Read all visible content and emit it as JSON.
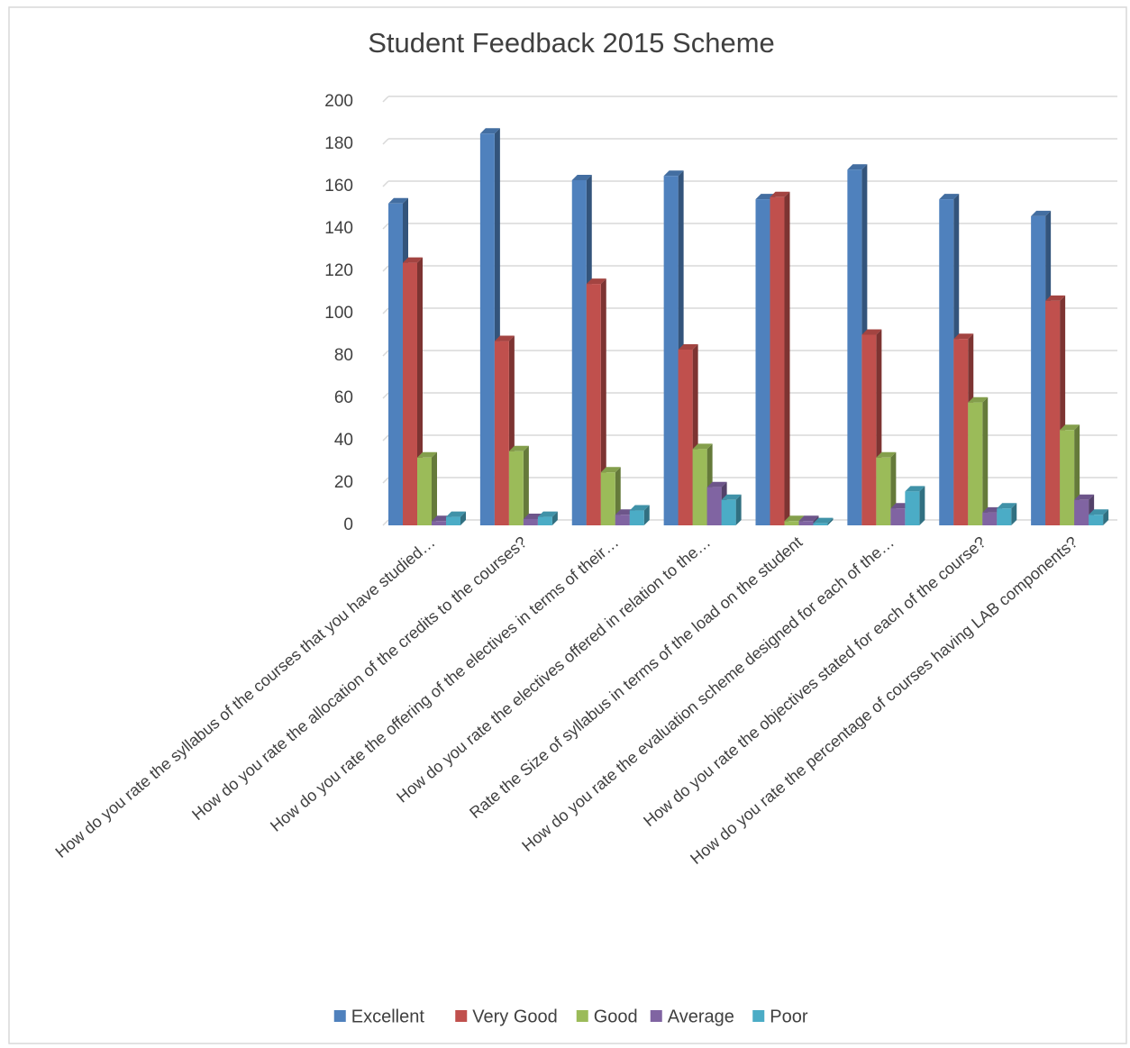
{
  "chart_data": {
    "type": "bar3d",
    "title": "Student Feedback 2015 Scheme",
    "categories": [
      "How do you rate the syllabus of the courses that you have studied…",
      "How do you rate the allocation of the credits to the courses?",
      "How do you rate the offering of the electives in terms of their…",
      "How do you rate the electives offered in relation to the…",
      "Rate the Size of syllabus in terms of the load on the student",
      "How do you rate the evaluation scheme designed for each of the…",
      "How do you rate the objectives stated for each of the course?",
      "How do you rate the percentage of courses having LAB components?"
    ],
    "series": [
      {
        "name": "Excellent",
        "color": "#4f81bd",
        "values": [
          152,
          185,
          163,
          165,
          154,
          168,
          154,
          146
        ]
      },
      {
        "name": "Very Good",
        "color": "#c0504d",
        "values": [
          124,
          87,
          114,
          83,
          155,
          90,
          88,
          106
        ]
      },
      {
        "name": "Good",
        "color": "#9bbb59",
        "values": [
          32,
          35,
          25,
          36,
          2,
          32,
          58,
          45
        ]
      },
      {
        "name": "Average",
        "color": "#8064a2",
        "values": [
          2,
          3,
          5,
          18,
          2,
          8,
          6,
          12
        ]
      },
      {
        "name": "Poor",
        "color": "#4bacc6",
        "values": [
          4,
          4,
          7,
          12,
          1,
          16,
          8,
          5
        ]
      }
    ],
    "ylim": [
      0,
      200
    ],
    "yticks": [
      0,
      20,
      40,
      60,
      80,
      100,
      120,
      140,
      160,
      180,
      200
    ],
    "grid": true,
    "legend": "bottom"
  }
}
